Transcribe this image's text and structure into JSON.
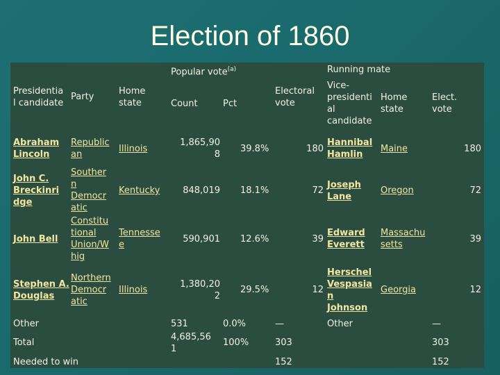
{
  "slide": {
    "title": "Election of 1860"
  },
  "table": {
    "group_headers": {
      "popular_vote": "Popular vote",
      "popular_vote_note": "(a)",
      "running_mate": "Running mate"
    },
    "headers": {
      "candidate": "Presidentia\nl candidate",
      "party": "Party",
      "home_state": "Home\nstate",
      "count": "Count",
      "pct": "Pct",
      "electoral_vote": "Electoral\nvote",
      "vp_candidate": "Vice-\npresidenti\nal\ncandidate",
      "vp_home_state": "Home\nstate",
      "vp_elect_vote": "Elect.\nvote"
    },
    "rows": [
      {
        "candidate": "Abraham\nLincoln",
        "party": "Republic\nan",
        "state": "Illinois",
        "count": "1,865,90\n8",
        "pct": "39.8%",
        "ev": "180",
        "vp": "Hannibal\nHamlin",
        "vp_state": "Maine",
        "vp_ev": "180"
      },
      {
        "candidate": "John C.\nBreckinri\ndge",
        "party": "Souther\nn\nDemocr\natic",
        "state": "Kentucky",
        "count": "848,019",
        "pct": "18.1%",
        "ev": "72",
        "vp": "Joseph\nLane",
        "vp_state": "Oregon",
        "vp_ev": "72"
      },
      {
        "candidate": "John Bell",
        "party": "Constitu\ntional\nUnion/W\nhig",
        "state": "Tennesse\ne",
        "count": "590,901",
        "pct": "12.6%",
        "ev": "39",
        "vp": "Edward\nEverett",
        "vp_state": "Massachu\nsetts",
        "vp_ev": "39"
      },
      {
        "candidate": "Stephen A.\nDouglas",
        "party": "Northern\nDemocr\natic",
        "state": "Illinois",
        "count": "1,380,20\n2",
        "pct": "29.5%",
        "ev": "12",
        "vp": "Herschel\nVespasia\nn\nJohnson",
        "vp_state": "Georgia",
        "vp_ev": "12"
      }
    ],
    "other": {
      "label": "Other",
      "count": "531",
      "pct": "0.0%",
      "ev": "—",
      "vp": "Other",
      "vp_ev": "—"
    },
    "total": {
      "label": "Total",
      "count": "4,685,56\n1",
      "pct": "100%",
      "ev": "303",
      "vp_ev": "303"
    },
    "needed": {
      "label": "Needed to win",
      "ev": "152",
      "vp_ev": "152"
    }
  }
}
